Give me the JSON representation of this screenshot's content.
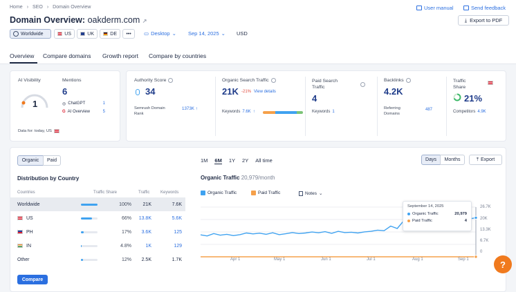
{
  "breadcrumb": [
    "Home",
    "SEO",
    "Domain Overview"
  ],
  "header": {
    "title_prefix": "Domain Overview:",
    "domain": "oakderm.com",
    "user_manual": "User manual",
    "send_feedback": "Send feedback",
    "export_pdf": "Export to PDF"
  },
  "filters": {
    "worldwide": "Worldwide",
    "countries": [
      "US",
      "UK",
      "DE"
    ],
    "more": "•••",
    "device": "Desktop",
    "date": "Sep 14, 2025",
    "currency": "USD"
  },
  "tabs": [
    "Overview",
    "Compare domains",
    "Growth report",
    "Compare by countries"
  ],
  "ai_card": {
    "visibility_label": "AI Visibility",
    "visibility_value": "1",
    "mentions_label": "Mentions",
    "mentions_value": "6",
    "chatgpt_label": "ChatGPT",
    "chatgpt_value": "1",
    "ai_overview_label": "AI Overview",
    "ai_overview_value": "5",
    "footer": "Data for: today, US"
  },
  "metrics": {
    "authority_label": "Authority Score",
    "authority_value": "34",
    "semrush_rank_label_1": "Semrush Domain",
    "semrush_rank_label_2": "Rank",
    "semrush_rank_value": "1373K",
    "organic_label": "Organic Search Traffic",
    "organic_value": "21K",
    "organic_change": "-21%",
    "view_details": "View details",
    "organic_keywords_label": "Keywords",
    "organic_keywords_value": "7.6K",
    "paid_label_1": "Paid Search",
    "paid_label_2": "Traffic",
    "paid_value": "4",
    "paid_keywords_label": "Keywords",
    "paid_keywords_value": "1",
    "backlinks_label": "Backlinks",
    "backlinks_value": "4.2K",
    "ref_domains_label_1": "Referring",
    "ref_domains_label_2": "Domains",
    "ref_domains_value": "487",
    "share_label_1": "Traffic",
    "share_label_2": "Share",
    "share_value": "21%",
    "competitors_label": "Competitors",
    "competitors_value": "4.9K"
  },
  "distribution": {
    "toggle": [
      "Organic",
      "Paid"
    ],
    "title": "Distribution by Country",
    "headers": [
      "Countries",
      "Traffic Share",
      "Traffic",
      "Keywords"
    ],
    "rows": [
      {
        "country": "Worldwide",
        "share": "100%",
        "share_frac": 1.0,
        "traffic": "21K",
        "keywords": "7.6K"
      },
      {
        "country": "US",
        "share": "66%",
        "share_frac": 0.66,
        "traffic": "13.8K",
        "keywords": "5.6K"
      },
      {
        "country": "PH",
        "share": "17%",
        "share_frac": 0.17,
        "traffic": "3.6K",
        "keywords": "125"
      },
      {
        "country": "IN",
        "share": "4.8%",
        "share_frac": 0.048,
        "traffic": "1K",
        "keywords": "129"
      },
      {
        "country": "Other",
        "share": "12%",
        "share_frac": 0.12,
        "traffic": "2.5K",
        "keywords": "1.7K"
      }
    ],
    "compare_button": "Compare"
  },
  "traffic_chart": {
    "ranges": [
      "1M",
      "6M",
      "1Y",
      "2Y",
      "All time"
    ],
    "active_range": "6M",
    "granularity": [
      "Days",
      "Months"
    ],
    "export": "Export",
    "title": "Organic Traffic",
    "title_value": "20,979/month",
    "legend_organic": "Organic Traffic",
    "legend_paid": "Paid Traffic",
    "legend_notes": "Notes",
    "tooltip": {
      "date": "September 14, 2025",
      "organic_label": "Organic Traffic",
      "organic_value": "20,979",
      "paid_label": "Paid Traffic",
      "paid_value": "4"
    },
    "help_icon": "?"
  },
  "chart_data": {
    "type": "line",
    "title": "Organic Traffic",
    "x_ticks": [
      "Apr 1",
      "May 1",
      "Jun 1",
      "Jul 1",
      "Aug 1",
      "Sep 1"
    ],
    "y_ticks": [
      "26.7K",
      "20K",
      "13.3K",
      "6.7K",
      "0"
    ],
    "ylim": [
      0,
      26700
    ],
    "x_range": [
      "Mar 15",
      "Sep 14"
    ],
    "series": [
      {
        "name": "Organic Traffic",
        "color": "#3fa2f0",
        "values": [
          11800,
          11200,
          12500,
          11600,
          12100,
          11400,
          11900,
          12800,
          12300,
          12700,
          12100,
          12900,
          11900,
          12400,
          13000,
          12500,
          12800,
          13300,
          12900,
          13500,
          12600,
          13700,
          13000,
          13200,
          12800,
          13400,
          13700,
          14300,
          14000,
          16500,
          15200,
          19400,
          16100,
          19800,
          16800,
          19000,
          18300,
          17400,
          19600,
          17000,
          19500,
          20400,
          20979
        ]
      },
      {
        "name": "Paid Traffic",
        "color": "#f5a04a",
        "values": [
          0,
          0,
          0,
          0,
          0,
          0,
          0,
          0,
          0,
          0,
          0,
          0,
          0,
          0,
          0,
          0,
          0,
          0,
          0,
          0,
          0,
          0,
          0,
          0,
          0,
          0,
          0,
          0,
          0,
          0,
          0,
          0,
          0,
          0,
          0,
          0,
          0,
          0,
          0,
          0,
          0,
          0,
          4
        ]
      }
    ],
    "grid": true
  },
  "colors": {
    "accent": "#2b6fe0",
    "organic": "#3fa2f0",
    "paid": "#f5a04a",
    "help": "#f07a1e"
  }
}
